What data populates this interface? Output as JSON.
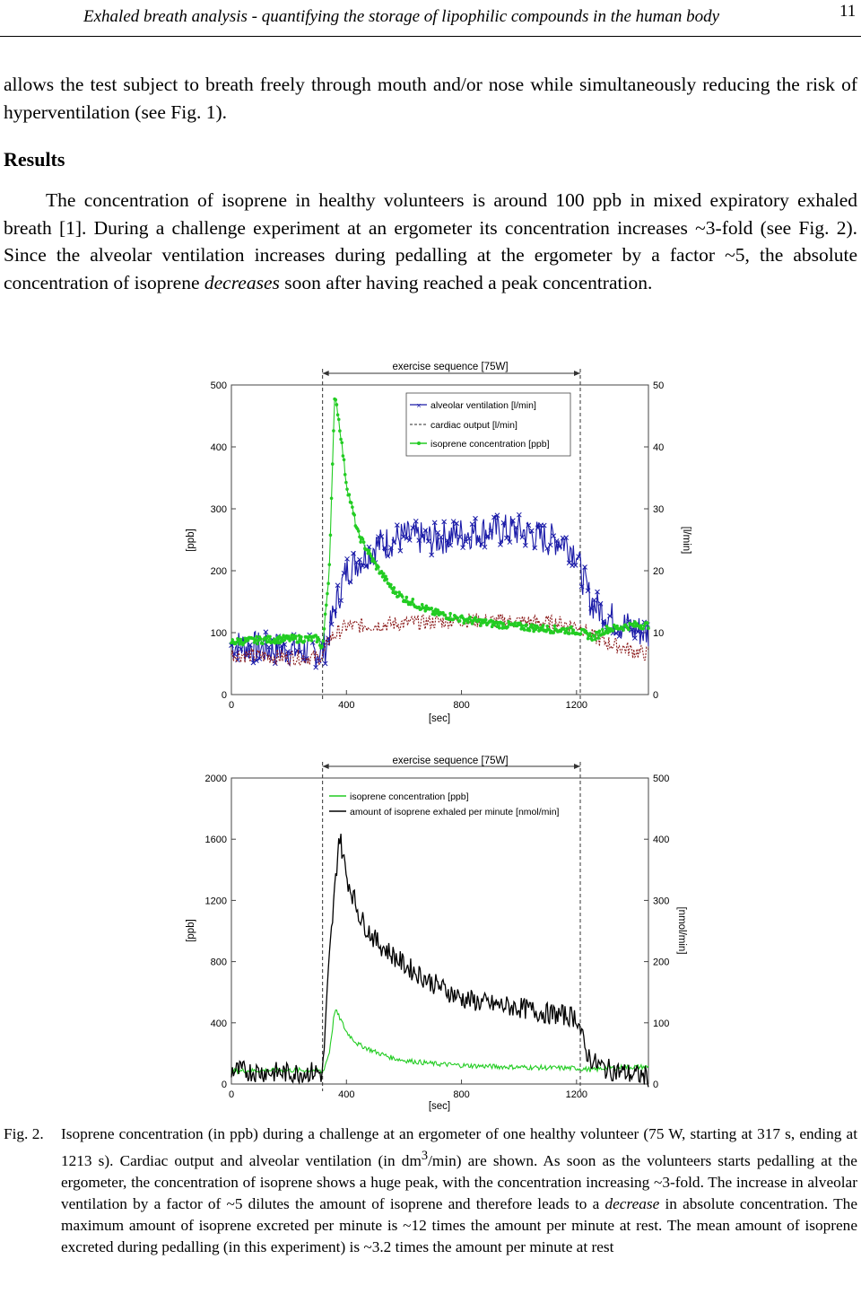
{
  "header": {
    "title": "Exhaled breath analysis - quantifying the storage of lipophilic compounds in the human body",
    "page_number": "11"
  },
  "para1": "allows the test subject to breath freely through mouth and/or nose while simultaneously reducing the risk of hyperventilation (see Fig. 1).",
  "results_heading": "Results",
  "para2": {
    "before": "The concentration of isoprene in healthy volunteers is around 100 ppb in mixed expiratory exhaled breath [1]. During a challenge experiment at an ergometer its concentration increases ~3-fold (see Fig. 2). Since the alveolar ventilation increases during pedalling at the ergometer by a factor ~5, the absolute concentration of isoprene ",
    "italic": "decreases",
    "after": " soon after having reached a peak concentration."
  },
  "figure1": {
    "exercise_label": "exercise sequence [75W]",
    "left_ylabel": "[ppb]",
    "right_ylabel": "[l/min]",
    "xlabel": "[sec]",
    "xticks": [
      "0",
      "400",
      "800",
      "1200"
    ],
    "left_yticks": [
      "0",
      "100",
      "200",
      "300",
      "400",
      "500"
    ],
    "right_yticks": [
      "0",
      "10",
      "20",
      "30",
      "40",
      "50"
    ],
    "legend": [
      "alveolar ventilation [l/min]",
      "cardiac output [l/min]",
      "isoprene concentration [ppb]"
    ]
  },
  "figure2": {
    "exercise_label": "exercise sequence [75W]",
    "left_ylabel": "[ppb]",
    "right_ylabel": "[nmol/min]",
    "xlabel": "[sec]",
    "xticks": [
      "0",
      "400",
      "800",
      "1200"
    ],
    "left_yticks": [
      "0",
      "400",
      "800",
      "1200",
      "1600",
      "2000"
    ],
    "right_yticks": [
      "0",
      "100",
      "200",
      "300",
      "400",
      "500"
    ],
    "legend": [
      "isoprene concentration [ppb]",
      "amount of isoprene exhaled per minute [nmol/min]"
    ]
  },
  "caption": {
    "label": "Fig. 2.",
    "part1": "Isoprene concentration (in ppb) during a challenge at an ergometer of one healthy volunteer (75 W, starting at 317 s, ending at 1213 s). Cardiac output and alveolar ventilation (in dm",
    "sup": "3",
    "part2": "/min) are shown. As soon as the volunteers starts pedalling at the ergometer, the concentration of isoprene shows a huge peak, with the concentration increasing ~3-fold. The increase in alveolar ventilation by a factor of ~5 dilutes the amount of isoprene and therefore leads to a ",
    "italic": "decrease",
    "part3": " in absolute concentration. The maximum amount of isoprene excreted per minute is ~12 times the amount per minute at rest. The mean amount of isoprene excreted during pedalling (in this experiment) is ~3.2 times the amount per minute at rest"
  },
  "chart_data": [
    {
      "type": "line",
      "title": "exercise sequence [75W]",
      "xlabel": "[sec]",
      "ylabel": "[ppb]",
      "y2label": "[l/min]",
      "xlim": [
        0,
        1450
      ],
      "ylim": [
        0,
        500
      ],
      "y2lim": [
        0,
        50
      ],
      "exercise_interval": [
        317,
        1213
      ],
      "legend_position": "top-right",
      "series": [
        {
          "name": "alveolar ventilation [l/min]",
          "axis": "right",
          "color": "#1a1aa8",
          "marker": "x",
          "x": [
            0,
            100,
            200,
            300,
            317,
            330,
            360,
            400,
            450,
            500,
            600,
            700,
            800,
            900,
            1000,
            1100,
            1150,
            1200,
            1213,
            1250,
            1300,
            1350,
            1400,
            1450
          ],
          "y": [
            8,
            7.5,
            7.2,
            7,
            7,
            8,
            14,
            20,
            22,
            24,
            25.5,
            25,
            26,
            26.5,
            26.5,
            25,
            25,
            23,
            20,
            15,
            13,
            11.5,
            10.5,
            10
          ]
        },
        {
          "name": "cardiac output [l/min]",
          "axis": "right",
          "color": "#8b1a1a",
          "dashed": true,
          "x": [
            0,
            100,
            200,
            300,
            317,
            340,
            400,
            600,
            800,
            1000,
            1150,
            1213,
            1250,
            1300,
            1400,
            1450
          ],
          "y": [
            6.5,
            6.2,
            6,
            6,
            6,
            9,
            11,
            11.5,
            12,
            11.8,
            11.5,
            11,
            9.5,
            8.5,
            7,
            6.5
          ]
        },
        {
          "name": "isoprene concentration [ppb]",
          "axis": "left",
          "color": "#22cc22",
          "marker": ".",
          "x": [
            0,
            100,
            200,
            300,
            317,
            340,
            360,
            380,
            400,
            440,
            500,
            560,
            600,
            700,
            800,
            900,
            1000,
            1100,
            1200,
            1230,
            1260,
            1300,
            1400,
            1450
          ],
          "y": [
            85,
            88,
            90,
            90,
            75,
            200,
            490,
            420,
            340,
            260,
            210,
            170,
            155,
            133,
            122,
            115,
            110,
            106,
            103,
            98,
            92,
            105,
            112,
            112
          ]
        }
      ]
    },
    {
      "type": "line",
      "title": "exercise sequence [75W]",
      "xlabel": "[sec]",
      "ylabel": "[ppb]",
      "y2label": "[nmol/min]",
      "xlim": [
        0,
        1450
      ],
      "ylim": [
        0,
        2000
      ],
      "y2lim": [
        0,
        500
      ],
      "exercise_interval": [
        317,
        1213
      ],
      "legend_position": "top-left",
      "series": [
        {
          "name": "isoprene concentration [ppb]",
          "axis": "left",
          "color": "#22cc22",
          "x": [
            0,
            100,
            200,
            300,
            317,
            340,
            360,
            380,
            400,
            440,
            500,
            560,
            600,
            700,
            800,
            900,
            1000,
            1100,
            1200,
            1230,
            1260,
            1300,
            1400,
            1450
          ],
          "y": [
            85,
            88,
            90,
            90,
            75,
            200,
            490,
            420,
            340,
            260,
            210,
            170,
            155,
            133,
            122,
            115,
            110,
            106,
            103,
            98,
            92,
            105,
            112,
            112
          ]
        },
        {
          "name": "amount of isoprene exhaled per minute [nmol/min]",
          "axis": "right",
          "color": "#000000",
          "x": [
            0,
            100,
            200,
            300,
            317,
            340,
            360,
            375,
            400,
            450,
            500,
            550,
            600,
            700,
            800,
            900,
            1000,
            1100,
            1200,
            1213,
            1230,
            1260,
            1300,
            1400,
            1450
          ],
          "y": [
            22,
            20,
            18,
            20,
            15,
            200,
            320,
            410,
            340,
            270,
            235,
            215,
            195,
            165,
            140,
            130,
            125,
            115,
            110,
            90,
            55,
            35,
            25,
            15,
            12
          ]
        }
      ]
    }
  ]
}
